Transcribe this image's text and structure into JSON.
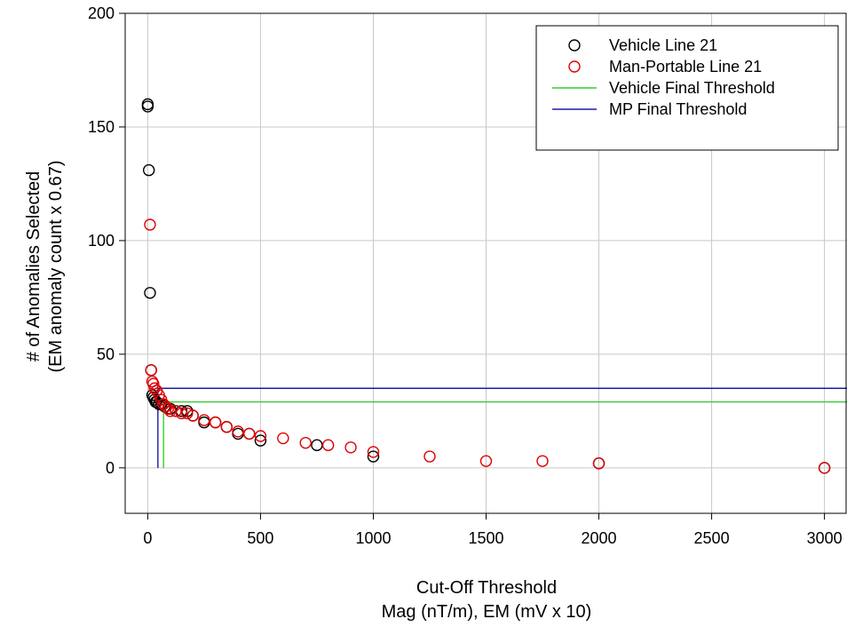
{
  "chart_data": {
    "type": "scatter",
    "xlabel": [
      "Cut-Off Threshold",
      "Mag (nT/m), EM (mV x 10)"
    ],
    "ylabel": [
      "# of Anomalies Selected",
      "(EM anomaly count x 0.67)"
    ],
    "xlim": [
      -100,
      3100
    ],
    "ylim": [
      -20,
      200
    ],
    "xticks": [
      0,
      500,
      1000,
      1500,
      2000,
      2500,
      3000
    ],
    "yticks": [
      0,
      50,
      100,
      150,
      200
    ],
    "xtick_labels": [
      "0",
      "500",
      "1000",
      "1500",
      "2000",
      "2500",
      "3000"
    ],
    "ytick_labels": [
      "0",
      "50",
      "100",
      "150",
      "200"
    ],
    "grid": true,
    "legend_position": "top-right",
    "legend": [
      {
        "label": "Vehicle Line 21",
        "kind": "marker",
        "color": "#000000"
      },
      {
        "label": "Man-Portable Line 21",
        "kind": "marker",
        "color": "#e00000"
      },
      {
        "label": "Vehicle Final Threshold",
        "kind": "line",
        "color": "#33cc33"
      },
      {
        "label": "MP Final Threshold",
        "kind": "line",
        "color": "#1a1aaa"
      }
    ],
    "series": [
      {
        "name": "Vehicle Line 21",
        "kind": "scatter",
        "color": "#000000",
        "points": [
          [
            0,
            160
          ],
          [
            0,
            159
          ],
          [
            5,
            131
          ],
          [
            10,
            77
          ],
          [
            15,
            43
          ],
          [
            20,
            32
          ],
          [
            25,
            31
          ],
          [
            30,
            30
          ],
          [
            35,
            29
          ],
          [
            40,
            29
          ],
          [
            50,
            28
          ],
          [
            60,
            28
          ],
          [
            75,
            27
          ],
          [
            100,
            26
          ],
          [
            125,
            25
          ],
          [
            150,
            25
          ],
          [
            175,
            25
          ],
          [
            200,
            23
          ],
          [
            250,
            20
          ],
          [
            300,
            20
          ],
          [
            350,
            18
          ],
          [
            400,
            15
          ],
          [
            450,
            15
          ],
          [
            500,
            12
          ],
          [
            750,
            10
          ],
          [
            1000,
            5
          ],
          [
            2000,
            2
          ],
          [
            3000,
            0
          ]
        ]
      },
      {
        "name": "Man-Portable Line 21",
        "kind": "scatter",
        "color": "#e00000",
        "points": [
          [
            10,
            107
          ],
          [
            15,
            43
          ],
          [
            20,
            38
          ],
          [
            25,
            37
          ],
          [
            30,
            35
          ],
          [
            40,
            34
          ],
          [
            50,
            32
          ],
          [
            60,
            30
          ],
          [
            70,
            28
          ],
          [
            80,
            27
          ],
          [
            90,
            26
          ],
          [
            100,
            25
          ],
          [
            125,
            25
          ],
          [
            150,
            24
          ],
          [
            175,
            24
          ],
          [
            200,
            23
          ],
          [
            250,
            21
          ],
          [
            300,
            20
          ],
          [
            350,
            18
          ],
          [
            400,
            16
          ],
          [
            450,
            15
          ],
          [
            500,
            14
          ],
          [
            600,
            13
          ],
          [
            700,
            11
          ],
          [
            800,
            10
          ],
          [
            900,
            9
          ],
          [
            1000,
            7
          ],
          [
            1250,
            5
          ],
          [
            1500,
            3
          ],
          [
            1750,
            3
          ],
          [
            2000,
            2
          ],
          [
            3000,
            0
          ]
        ]
      },
      {
        "name": "Vehicle Final Threshold",
        "kind": "line",
        "color": "#33cc33",
        "points": [
          [
            70,
            0
          ],
          [
            70,
            29
          ],
          [
            3100,
            29
          ]
        ]
      },
      {
        "name": "MP Final Threshold",
        "kind": "line",
        "color": "#1a1aaa",
        "points": [
          [
            45,
            0
          ],
          [
            45,
            35
          ],
          [
            3100,
            35
          ]
        ]
      }
    ]
  }
}
